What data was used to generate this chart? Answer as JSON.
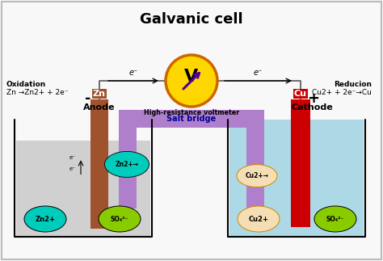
{
  "title": "Galvanic cell",
  "title_fontsize": 13,
  "background_color": "#f8f8f8",
  "left_beaker": {
    "solution_color": "#d0d0d0",
    "electrode_color": "#a0522d",
    "electrode_label": "Zn",
    "label": "Anode",
    "sign": "-",
    "reaction_line1": "Oxidation",
    "reaction_line2": "Zn →Zn2+ + 2e⁻",
    "ion1_label": "Zn2+",
    "ion1_color": "#00ccbb",
    "ion2_label": "SO₄²⁻",
    "ion2_color": "#88cc00",
    "moving_ion_label": "Zn2+→",
    "moving_ion_color": "#00ccbb"
  },
  "right_beaker": {
    "solution_color": "#add8e6",
    "electrode_color": "#cc0000",
    "electrode_label": "Cu",
    "label": "Cathode",
    "sign": "+",
    "reaction_line1": "Reducion",
    "reaction_line2": "Cu2+ + 2e⁻→Cu",
    "ion1_label": "Cu2+",
    "ion1_color": "#f5deb3",
    "ion2_label": "SO₄²⁻",
    "ion2_color": "#88cc00",
    "moving_ion_label": "Cu2+→",
    "moving_ion_color": "#f5deb3"
  },
  "salt_bridge_color": "#b07fcc",
  "salt_bridge_label_color": "#000099",
  "voltmeter_color": "#ffd700",
  "voltmeter_border_color": "#cc6600",
  "wire_color": "#555555",
  "salt_bridge_label": "Salt bridge",
  "voltmeter_label": "V",
  "voltmeter_sublabel": "High-resistance voltmeter",
  "electron_label": "e⁻"
}
